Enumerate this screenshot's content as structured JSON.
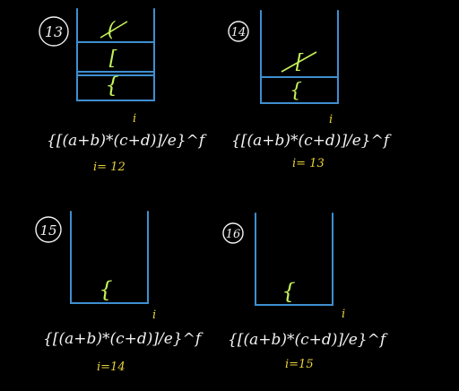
{
  "panels": [
    {
      "step": "13",
      "stack": [
        "{",
        "[",
        "("
      ],
      "crossed": "(",
      "expression": "{[(a+b)*(c+d)]/e}^f",
      "pointer": "i",
      "index": "i= 12"
    },
    {
      "step": "14",
      "stack": [
        "{",
        "["
      ],
      "crossed": "[",
      "expression": "{[(a+b)*(c+d)]/e}^f",
      "pointer": "i",
      "index": "i= 13"
    },
    {
      "step": "15",
      "stack": [
        "{"
      ],
      "crossed": "",
      "expression": "{[(a+b)*(c+d)]/e}^f",
      "pointer": "i",
      "index": "i=14"
    },
    {
      "step": "16",
      "stack": [
        "{"
      ],
      "crossed": "",
      "expression": "{[(a+b)*(c+d)]/e}^f",
      "pointer": "i",
      "index": "i=15"
    }
  ],
  "colors": {
    "stack_outline": "#3f8fd0",
    "stack_item": "#c6f25a",
    "pointer": "#e8d23a",
    "text": "#f2f2f2"
  }
}
